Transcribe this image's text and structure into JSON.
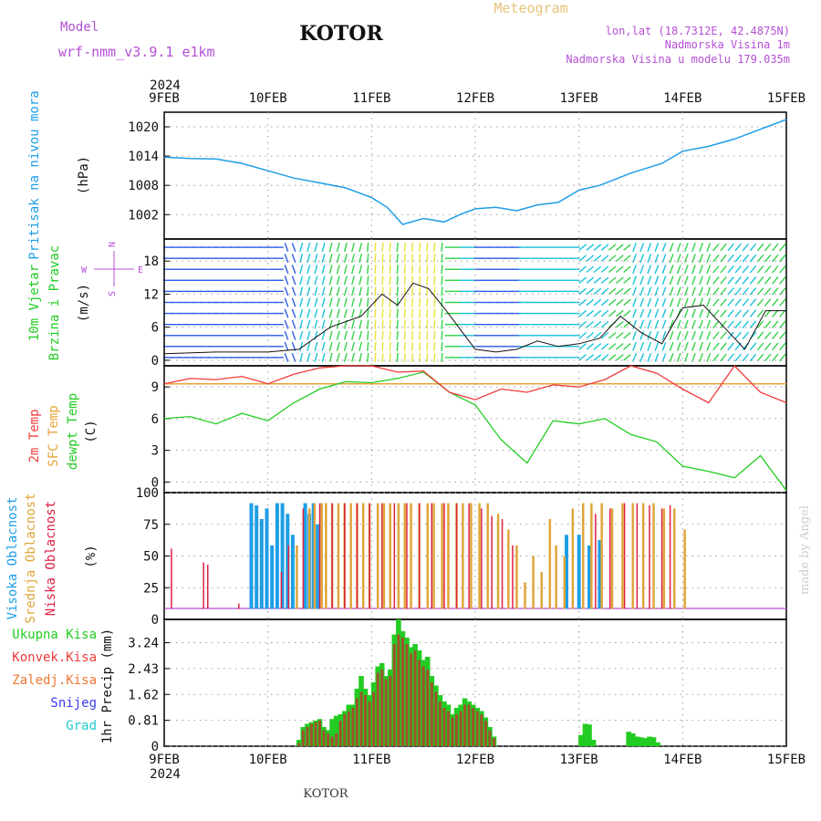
{
  "header": {
    "model_label": "Model",
    "model_name": "wrf-nmm_v3.9.1 e1km",
    "station": "KOTOR",
    "title": "Meteogram",
    "lonlat": "lon,lat (18.7312E, 42.4875N)",
    "elevation": "Nadmorska Visina 1m",
    "model_elevation": "Nadmorska Visina u modelu 179.035m",
    "footer_station": "KOTOR",
    "credit": "made by Angel"
  },
  "colors": {
    "pressure": "#1e9ee6",
    "temp2m": "#ee3b3b",
    "sfc_temp": "#e8a33a",
    "dewpt": "#22cc22",
    "high_cloud": "#1e9ee6",
    "mid_cloud": "#dfa63a",
    "low_cloud": "#dd2244",
    "total_precip": "#22cc22",
    "conv_precip": "#ee3b3b",
    "grid_precip": "#ee7733",
    "snow": "#3a3aee",
    "graupel": "#22cccc",
    "purple": "#b44fd4"
  },
  "chart_data": [
    {
      "type": "line",
      "panel": "pressure",
      "ylabel": [
        "Pritisak na nivou mora",
        "(hPa)"
      ],
      "ylim": [
        997,
        1023
      ],
      "yticks": [
        1002,
        1008,
        1014,
        1020
      ],
      "x_top_year": "2024",
      "x_bottom_year": "2024",
      "xticks": [
        "9FEB",
        "10FEB",
        "11FEB",
        "12FEB",
        "13FEB",
        "14FEB",
        "15FEB"
      ],
      "x": [
        0,
        0.25,
        0.5,
        0.75,
        1.0,
        1.25,
        1.5,
        1.75,
        2.0,
        2.15,
        2.3,
        2.5,
        2.7,
        2.85,
        3.0,
        3.2,
        3.4,
        3.6,
        3.8,
        4.0,
        4.2,
        4.5,
        4.8,
        5.0,
        5.25,
        5.5,
        5.75,
        6.0
      ],
      "series": [
        {
          "values": [
            1013.8,
            1013.5,
            1013.4,
            1012.5,
            1011.0,
            1009.5,
            1008.5,
            1007.5,
            1005.5,
            1003.5,
            1000.0,
            1001.2,
            1000.5,
            1002.0,
            1003.2,
            1003.5,
            1002.8,
            1004.0,
            1004.5,
            1007.0,
            1008.0,
            1010.5,
            1012.5,
            1015.0,
            1016.0,
            1017.5,
            1019.5,
            1021.5
          ]
        }
      ]
    },
    {
      "type": "line",
      "panel": "wind",
      "ylabel": [
        "10m Vjetar",
        "Brzina i Pravac",
        "(m/s)"
      ],
      "compass": [
        "N",
        "W",
        "E",
        "S"
      ],
      "ylim": [
        -1,
        22
      ],
      "yticks": [
        0,
        6,
        12,
        18
      ],
      "x": [
        0,
        0.5,
        1.0,
        1.3,
        1.6,
        1.9,
        2.1,
        2.25,
        2.4,
        2.55,
        2.7,
        2.9,
        3.0,
        3.2,
        3.4,
        3.6,
        3.8,
        4.0,
        4.2,
        4.4,
        4.6,
        4.8,
        5.0,
        5.2,
        5.4,
        5.6,
        5.8,
        6.0
      ],
      "series": [
        {
          "name": "speed",
          "values": [
            1.2,
            1.5,
            1.5,
            2.0,
            6.0,
            8.0,
            12.0,
            10.0,
            14.0,
            13.0,
            9.5,
            4.5,
            2.0,
            1.5,
            2.0,
            3.5,
            2.5,
            3.0,
            4.0,
            8.0,
            5.0,
            3.0,
            9.5,
            10.0,
            6.0,
            2.0,
            9.0,
            9.0
          ]
        }
      ]
    },
    {
      "type": "line",
      "panel": "temperature",
      "ylabel": [
        "2m Temp",
        "SFC Temp",
        "dewpt Temp",
        "(C)"
      ],
      "ylim": [
        -1,
        11
      ],
      "yticks": [
        0,
        3,
        6,
        9
      ],
      "x": [
        0,
        0.25,
        0.5,
        0.75,
        1.0,
        1.25,
        1.5,
        1.75,
        2.0,
        2.25,
        2.5,
        2.75,
        3.0,
        3.25,
        3.5,
        3.75,
        4.0,
        4.25,
        4.5,
        4.75,
        5.0,
        5.25,
        5.5,
        5.75,
        6.0
      ],
      "series": [
        {
          "name": "2m",
          "values": [
            9.3,
            9.8,
            9.7,
            10.0,
            9.3,
            10.2,
            10.8,
            11.0,
            11.0,
            10.4,
            10.5,
            8.5,
            7.8,
            8.8,
            8.5,
            9.2,
            9.0,
            9.7,
            11.0,
            10.3,
            8.8,
            7.5,
            11.0,
            8.5,
            7.5
          ]
        },
        {
          "name": "sfc",
          "values": [
            9.3,
            9.3,
            9.3,
            9.3,
            9.3,
            9.3,
            9.3,
            9.3,
            9.3,
            9.3,
            9.3,
            9.3,
            9.3,
            9.3,
            9.3,
            9.3,
            9.3,
            9.3,
            9.3,
            9.3,
            9.3,
            9.3,
            9.3,
            9.3,
            9.3
          ]
        },
        {
          "name": "dewpt",
          "values": [
            6.0,
            6.2,
            5.5,
            6.5,
            5.8,
            7.5,
            8.8,
            9.5,
            9.4,
            9.8,
            10.4,
            8.5,
            7.3,
            4.0,
            1.8,
            5.8,
            5.5,
            6.0,
            4.5,
            3.8,
            1.5,
            1.0,
            0.4,
            2.5,
            -0.8
          ]
        }
      ]
    },
    {
      "type": "bar",
      "panel": "clouds",
      "ylabel": [
        "Visoka Oblacnost",
        "Srednja Oblacnost",
        "Niska Oblacnost",
        "(%)"
      ],
      "ylim": [
        0,
        100
      ],
      "yticks": [
        0,
        25,
        50,
        75,
        100
      ],
      "series": [
        {
          "name": "high",
          "x": [
            0.84,
            0.89,
            0.94,
            0.99,
            1.04,
            1.09,
            1.14,
            1.19,
            1.24,
            1.36,
            1.4,
            1.44,
            1.48,
            3.88,
            4.0,
            4.1,
            4.2
          ],
          "values": [
            100,
            98,
            85,
            95,
            60,
            100,
            100,
            90,
            70,
            100,
            90,
            100,
            80,
            70,
            70,
            60,
            65
          ]
        },
        {
          "name": "mid",
          "x": [
            1.28,
            1.4,
            1.45,
            1.52,
            1.56,
            1.62,
            1.68,
            1.74,
            1.8,
            1.86,
            1.92,
            1.98,
            2.06,
            2.12,
            2.18,
            2.26,
            2.32,
            2.38,
            2.46,
            2.54,
            2.6,
            2.68,
            2.74,
            2.82,
            2.88,
            2.96,
            3.04,
            3.12,
            3.22,
            3.32,
            3.4,
            3.48,
            3.56,
            3.64,
            3.72,
            3.78,
            3.86,
            3.94,
            4.04,
            4.12,
            4.22,
            4.32,
            4.42,
            4.52,
            4.62,
            4.72,
            4.82,
            4.92,
            5.02
          ],
          "values": [
            60,
            95,
            100,
            100,
            100,
            100,
            100,
            100,
            100,
            100,
            100,
            100,
            100,
            100,
            100,
            100,
            100,
            100,
            100,
            100,
            100,
            100,
            100,
            100,
            100,
            100,
            100,
            100,
            90,
            75,
            60,
            25,
            50,
            35,
            85,
            60,
            50,
            95,
            100,
            100,
            100,
            95,
            100,
            100,
            100,
            100,
            95,
            95,
            75
          ]
        },
        {
          "name": "low",
          "x": [
            0.07,
            0.38,
            0.42,
            0.72,
            1.13,
            1.2,
            1.34,
            1.5,
            1.62,
            1.74,
            1.86,
            1.98,
            2.1,
            2.22,
            2.34,
            2.46,
            2.58,
            2.7,
            2.82,
            2.94,
            3.06,
            3.16,
            3.26,
            3.36,
            4.16,
            4.3,
            4.44,
            4.56,
            4.68,
            4.8,
            4.88
          ],
          "values": [
            57,
            44,
            42,
            5,
            35,
            60,
            95,
            100,
            100,
            100,
            100,
            100,
            100,
            100,
            100,
            100,
            100,
            100,
            100,
            100,
            95,
            88,
            85,
            60,
            90,
            95,
            100,
            100,
            98,
            95,
            98
          ]
        }
      ]
    },
    {
      "type": "bar",
      "panel": "precip",
      "ylabel": [
        "1hr Precip (mm)"
      ],
      "legend": [
        "Ukupna Kisa",
        "Konvek.Kisa",
        "Zaledj.Kisa",
        "Snijeg",
        "Grad"
      ],
      "ylim": [
        0,
        3.97
      ],
      "yticks": [
        "0",
        "0.81",
        "1.62",
        "2.43",
        "3.24"
      ],
      "x": [
        1.3,
        1.34,
        1.38,
        1.42,
        1.46,
        1.5,
        1.54,
        1.58,
        1.62,
        1.66,
        1.7,
        1.74,
        1.78,
        1.82,
        1.86,
        1.9,
        1.94,
        1.98,
        2.02,
        2.06,
        2.1,
        2.14,
        2.18,
        2.22,
        2.26,
        2.3,
        2.34,
        2.38,
        2.42,
        2.46,
        2.5,
        2.54,
        2.58,
        2.62,
        2.66,
        2.7,
        2.74,
        2.78,
        2.82,
        2.86,
        2.9,
        2.94,
        2.98,
        3.02,
        3.06,
        3.1,
        3.14,
        3.18,
        3.22,
        3.26,
        3.3,
        3.34,
        4.02,
        4.06,
        4.1,
        4.14,
        4.48,
        4.52,
        4.56,
        4.6,
        4.64,
        4.68,
        4.72,
        4.76
      ],
      "series": [
        {
          "name": "Ukupna Kisa",
          "values": [
            0.2,
            0.6,
            0.7,
            0.75,
            0.8,
            0.85,
            0.6,
            0.5,
            0.85,
            0.95,
            1.0,
            1.1,
            1.3,
            1.3,
            1.8,
            2.2,
            1.8,
            1.6,
            2.0,
            2.5,
            2.6,
            2.2,
            2.4,
            3.5,
            3.97,
            3.6,
            3.4,
            3.1,
            3.2,
            3.0,
            2.7,
            2.8,
            2.2,
            1.9,
            1.6,
            1.4,
            1.3,
            1.0,
            1.2,
            1.3,
            1.5,
            1.4,
            1.3,
            1.2,
            1.1,
            0.9,
            0.6,
            0.3,
            0,
            0,
            0,
            0,
            0.35,
            0.7,
            0.68,
            0.2,
            0.45,
            0.4,
            0.3,
            0.28,
            0.25,
            0.3,
            0.28,
            0.12
          ]
        },
        {
          "name": "Konvek.Kisa",
          "values": [
            0.1,
            0.5,
            0.6,
            0.7,
            0.75,
            0.8,
            0.5,
            0.4,
            0.3,
            0.4,
            0.8,
            1.0,
            1.1,
            1.2,
            1.5,
            1.7,
            1.6,
            1.4,
            1.7,
            2.3,
            2.4,
            2.1,
            2.2,
            3.2,
            3.5,
            3.4,
            3.2,
            2.9,
            3.0,
            2.7,
            2.5,
            2.4,
            2.0,
            1.7,
            1.4,
            1.2,
            1.1,
            0.9,
            1.0,
            1.1,
            1.3,
            1.3,
            1.2,
            1.1,
            1.0,
            0.8,
            0.5,
            0.25,
            0,
            0,
            0,
            0,
            0,
            0,
            0,
            0,
            0,
            0,
            0,
            0,
            0,
            0,
            0,
            0
          ]
        }
      ]
    }
  ]
}
